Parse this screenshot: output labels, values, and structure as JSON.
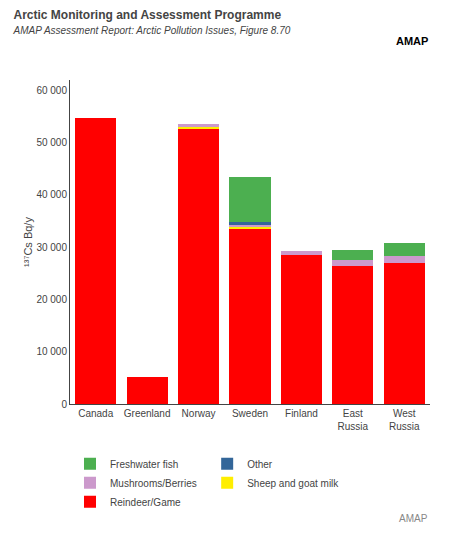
{
  "chart_data": {
    "type": "bar",
    "stacked": true,
    "title": "Arctic Monitoring and Assessment Programme",
    "subtitle": "AMAP Assessment Report: Arctic Pollution Issues, Figure 8.70",
    "ylabel": "¹³⁷Cs Bq/y",
    "categories": [
      "Canada",
      "Greenland",
      "Norway",
      "Sweden",
      "Finland",
      "East\nRussia",
      "West\nRussia"
    ],
    "series": [
      {
        "name": "Reindeer/Game",
        "color": "#ff0000",
        "values": [
          54800,
          5200,
          52800,
          33500,
          28500,
          26500,
          27000
        ]
      },
      {
        "name": "Sheep and goat milk",
        "color": "#ffee00",
        "values": [
          0,
          0,
          200,
          300,
          0,
          0,
          0
        ]
      },
      {
        "name": "Mushrooms/Berries",
        "color": "#cc99cc",
        "values": [
          0,
          0,
          500,
          500,
          700,
          1000,
          1300
        ]
      },
      {
        "name": "Other",
        "color": "#336699",
        "values": [
          0,
          0,
          0,
          600,
          0,
          0,
          0
        ]
      },
      {
        "name": "Freshwater fish",
        "color": "#4caf50",
        "values": [
          0,
          0,
          0,
          8500,
          0,
          2000,
          2500
        ]
      }
    ],
    "ylim": [
      0,
      62000
    ],
    "yticks": [
      0,
      {
        "value": 10000,
        "label": "10 000"
      },
      {
        "value": 20000,
        "label": "20 000"
      },
      {
        "value": 30000,
        "label": "30 000"
      },
      {
        "value": 40000,
        "label": "40 000"
      },
      {
        "value": 50000,
        "label": "50 000"
      },
      {
        "value": 60000,
        "label": "60 000"
      }
    ],
    "grid": false,
    "legend": "bottom",
    "annotations": [
      "AMAP",
      "AMAP"
    ]
  }
}
